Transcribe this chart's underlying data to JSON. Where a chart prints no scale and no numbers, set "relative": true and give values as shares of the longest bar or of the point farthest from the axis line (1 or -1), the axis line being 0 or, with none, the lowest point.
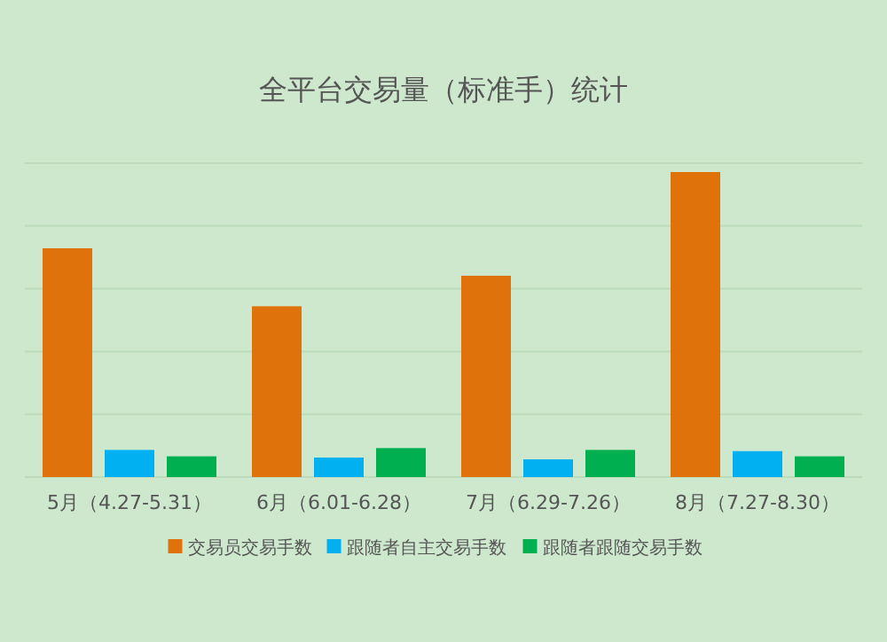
{
  "chart_data": {
    "type": "bar",
    "title": "全平台交易量（标准手）统计",
    "relative": true,
    "grid": "y",
    "legend": "bottom",
    "categories": [
      "5月（4.27-5.31）",
      "6月（6.01-6.28）",
      "7月（6.29-7.26）",
      "8月（7.27-8.30）"
    ],
    "series": [
      {
        "name": "交易员交易手数",
        "color": "#e0720c",
        "values": [
          0.75,
          0.56,
          0.66,
          1
        ]
      },
      {
        "name": "跟随者自主交易手数",
        "color": "#00b0f0",
        "values": [
          0.089,
          0.064,
          0.058,
          0.085
        ]
      },
      {
        "name": "跟随者跟随交易手数",
        "color": "#00b050",
        "values": [
          0.068,
          0.095,
          0.089,
          0.068
        ]
      }
    ]
  }
}
